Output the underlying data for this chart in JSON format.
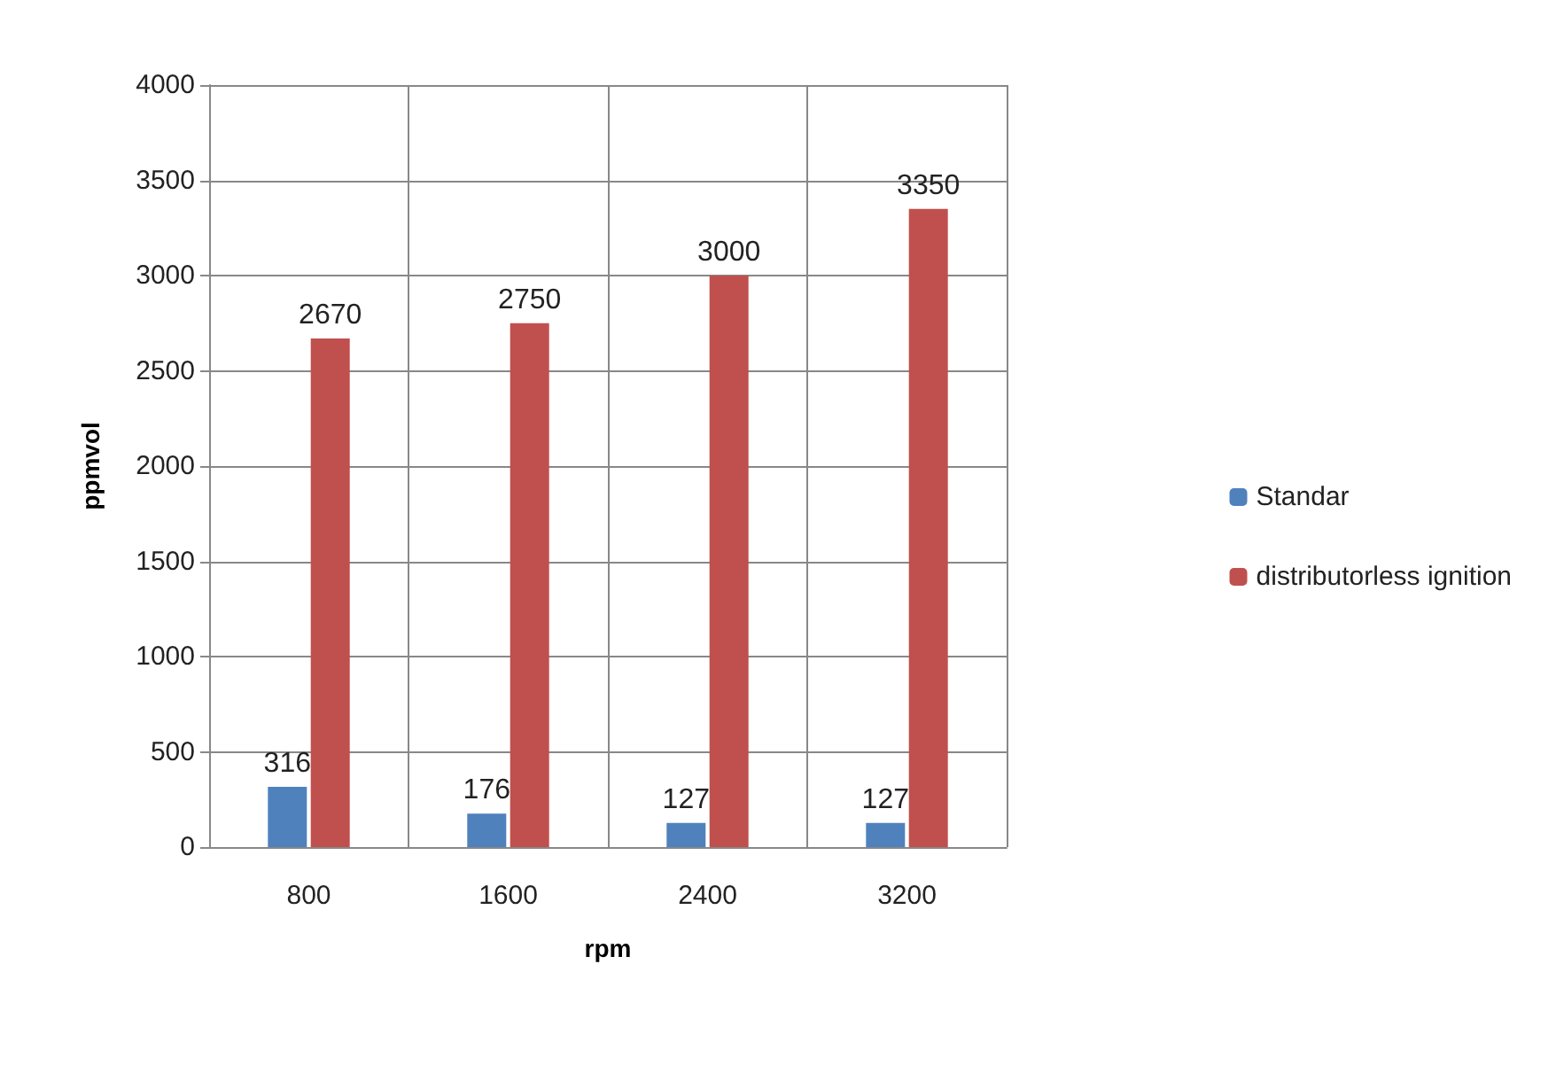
{
  "chart_data": {
    "type": "bar",
    "xlabel": "rpm",
    "ylabel": "ppmvol",
    "categories": [
      "800",
      "1600",
      "2400",
      "3200"
    ],
    "series": [
      {
        "name": "Standar",
        "color": "#4f81bd",
        "values": [
          316,
          176,
          127,
          127
        ]
      },
      {
        "name": "distributorless ignition",
        "color": "#c0504d",
        "values": [
          2670,
          2750,
          3000,
          3350
        ]
      }
    ],
    "ylim": [
      0,
      4000
    ],
    "yticks": [
      0,
      500,
      1000,
      1500,
      2000,
      2500,
      3000,
      3500,
      4000
    ],
    "grid": true,
    "legend": "right",
    "data_labels": true
  }
}
